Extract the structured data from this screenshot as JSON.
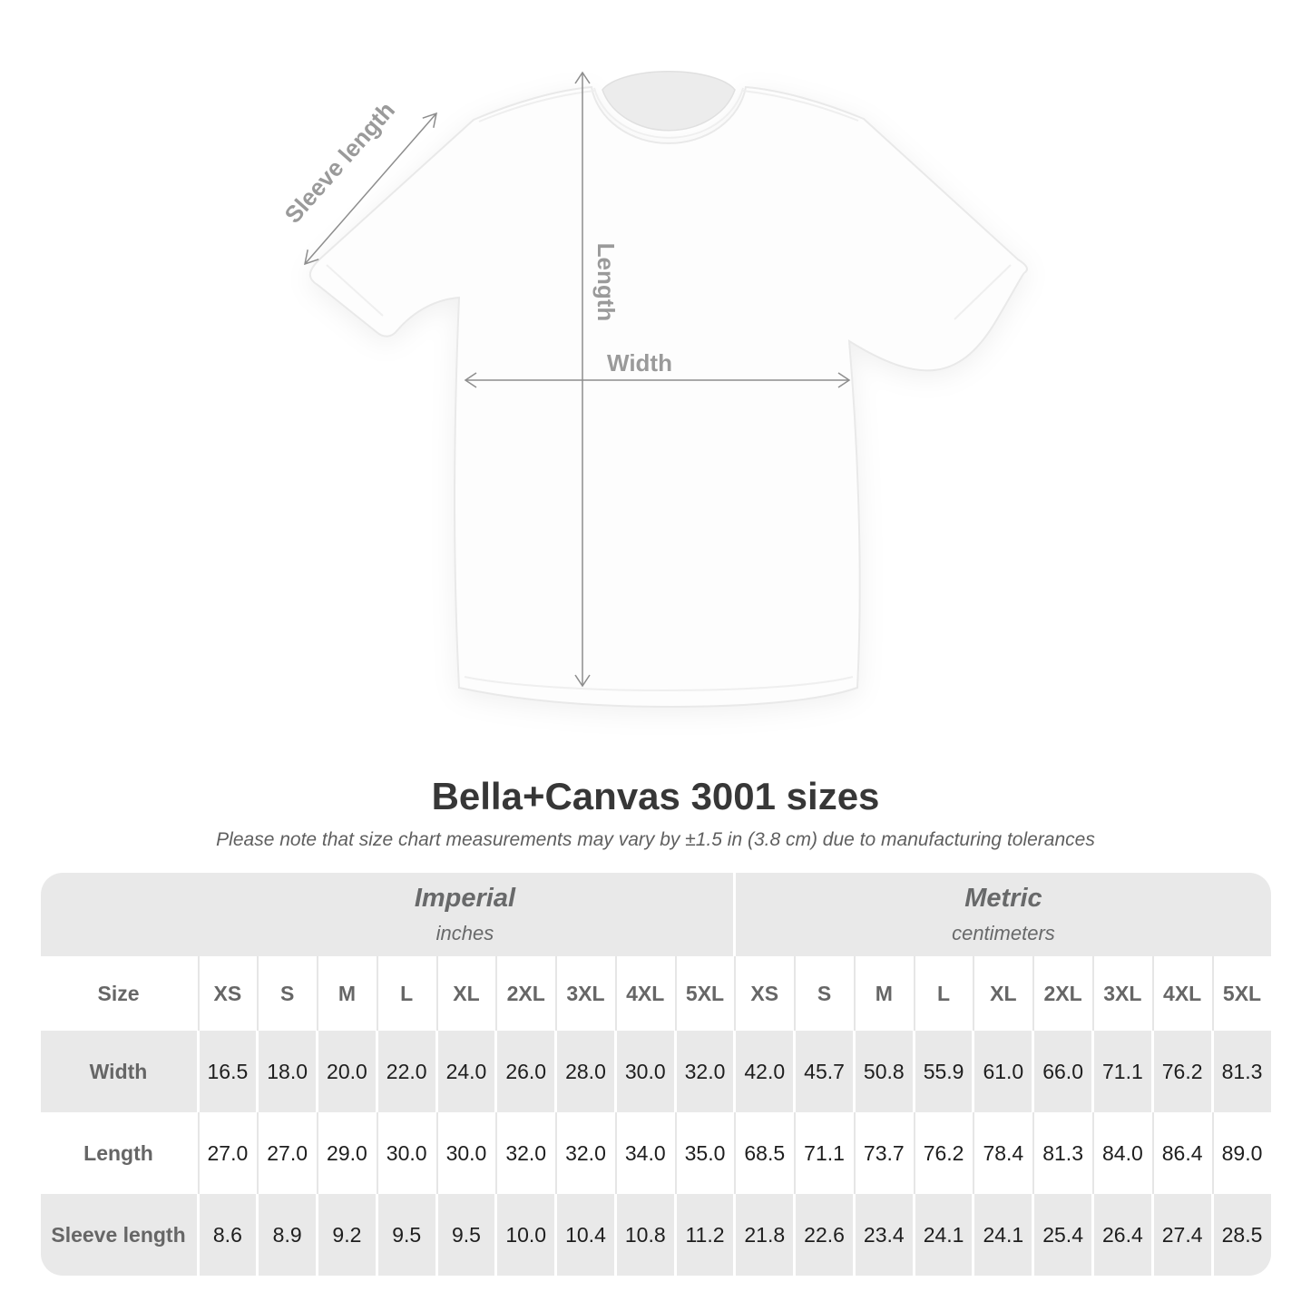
{
  "diagram": {
    "labels": {
      "sleeve": "Sleeve length",
      "length": "Length",
      "width": "Width"
    }
  },
  "header": {
    "title": "Bella+Canvas 3001 sizes",
    "subtitle": "Please note that size chart measurements may vary by ±1.5 in (3.8 cm) due to manufacturing tolerances"
  },
  "table": {
    "unit_groups": [
      {
        "title": "Imperial",
        "unit": "inches"
      },
      {
        "title": "Metric",
        "unit": "centimeters"
      }
    ],
    "size_label": "Size",
    "size_columns": [
      "XS",
      "S",
      "M",
      "L",
      "XL",
      "2XL",
      "3XL",
      "4XL",
      "5XL",
      "XS",
      "S",
      "M",
      "L",
      "XL",
      "2XL",
      "3XL",
      "4XL",
      "5XL"
    ],
    "rows": [
      {
        "label": "Width",
        "values": [
          "16.5",
          "18.0",
          "20.0",
          "22.0",
          "24.0",
          "26.0",
          "28.0",
          "30.0",
          "32.0",
          "42.0",
          "45.7",
          "50.8",
          "55.9",
          "61.0",
          "66.0",
          "71.1",
          "76.2",
          "81.3"
        ]
      },
      {
        "label": "Length",
        "values": [
          "27.0",
          "27.0",
          "29.0",
          "30.0",
          "30.0",
          "32.0",
          "32.0",
          "34.0",
          "35.0",
          "68.5",
          "71.1",
          "73.7",
          "76.2",
          "78.4",
          "81.3",
          "84.0",
          "86.4",
          "89.0"
        ]
      },
      {
        "label": "Sleeve length",
        "values": [
          "8.6",
          "8.9",
          "9.2",
          "9.5",
          "9.5",
          "10.0",
          "10.4",
          "10.8",
          "11.2",
          "21.8",
          "22.6",
          "23.4",
          "24.1",
          "24.1",
          "25.4",
          "26.4",
          "27.4",
          "28.5"
        ]
      }
    ]
  },
  "chart_data": {
    "type": "table",
    "title": "Bella+Canvas 3001 sizes",
    "note": "Measurements may vary by ±1.5 in (3.8 cm) due to manufacturing tolerances",
    "sizes": [
      "XS",
      "S",
      "M",
      "L",
      "XL",
      "2XL",
      "3XL",
      "4XL",
      "5XL"
    ],
    "measurements": [
      {
        "name": "Width",
        "inches": [
          16.5,
          18.0,
          20.0,
          22.0,
          24.0,
          26.0,
          28.0,
          30.0,
          32.0
        ],
        "centimeters": [
          42.0,
          45.7,
          50.8,
          55.9,
          61.0,
          66.0,
          71.1,
          76.2,
          81.3
        ]
      },
      {
        "name": "Length",
        "inches": [
          27.0,
          27.0,
          29.0,
          30.0,
          30.0,
          32.0,
          32.0,
          34.0,
          35.0
        ],
        "centimeters": [
          68.5,
          71.1,
          73.7,
          76.2,
          78.4,
          81.3,
          84.0,
          86.4,
          89.0
        ]
      },
      {
        "name": "Sleeve length",
        "inches": [
          8.6,
          8.9,
          9.2,
          9.5,
          9.5,
          10.0,
          10.4,
          10.8,
          11.2
        ],
        "centimeters": [
          21.8,
          22.6,
          23.4,
          24.1,
          24.1,
          25.4,
          26.4,
          27.4,
          28.5
        ]
      }
    ]
  },
  "colors": {
    "table_band_gray": "#e9e9e9",
    "diagram_label_gray": "#9a9a9a",
    "value_text": "#1e1e1e",
    "title_text": "#373737"
  }
}
